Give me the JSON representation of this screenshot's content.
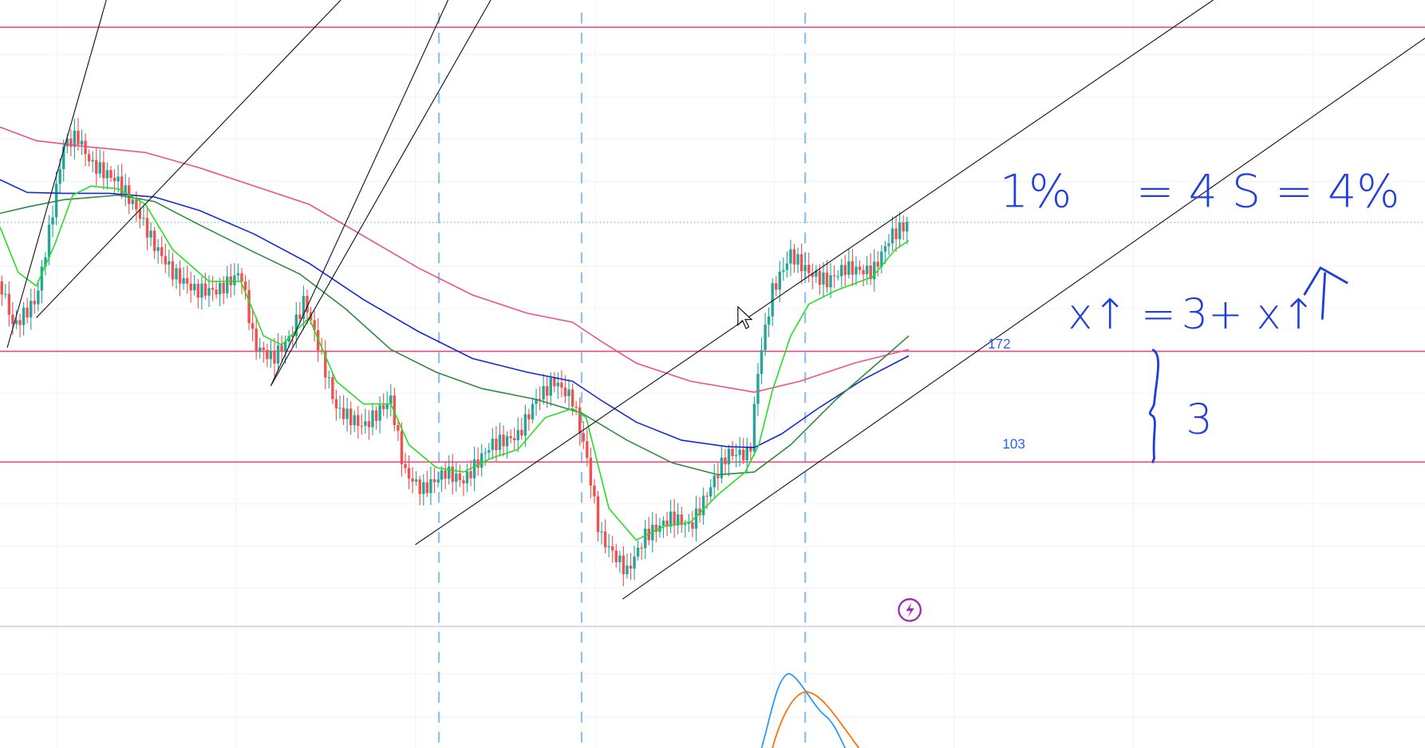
{
  "price_labels": [
    "172",
    "103"
  ],
  "notes": [
    "1%",
    "= 4 S = 4%",
    "x↑ =",
    "3+ x↑",
    "3"
  ]
}
